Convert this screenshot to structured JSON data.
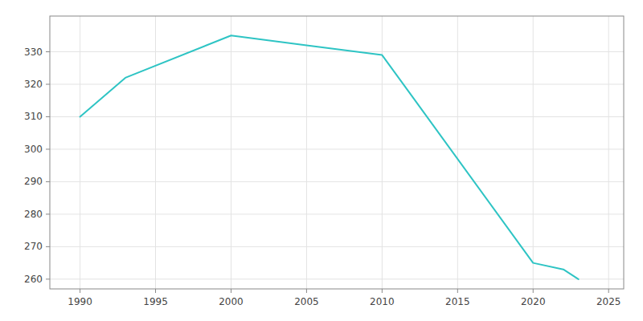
{
  "chart_data": {
    "type": "line",
    "x": [
      1990,
      1993,
      2000,
      2005,
      2010,
      2020,
      2022,
      2023
    ],
    "values": [
      310,
      322,
      335,
      332,
      329,
      265,
      263,
      260
    ],
    "color": "#2EC4C4",
    "xlim": [
      1988,
      2026
    ],
    "ylim": [
      257,
      341
    ],
    "xticks": [
      1990,
      1995,
      2000,
      2005,
      2010,
      2015,
      2020,
      2025
    ],
    "yticks": [
      260,
      270,
      280,
      290,
      300,
      310,
      320,
      330
    ],
    "grid": true
  }
}
